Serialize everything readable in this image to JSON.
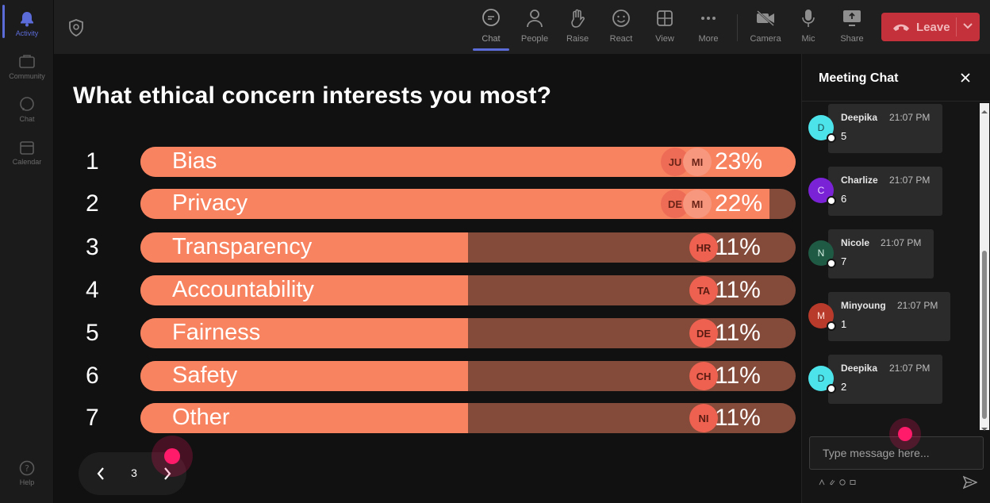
{
  "rail": {
    "items": [
      {
        "label": "Activity",
        "icon": "bell-icon"
      },
      {
        "label": "Community",
        "icon": "community-icon"
      },
      {
        "label": "Chat",
        "icon": "chat-icon"
      },
      {
        "label": "Calendar",
        "icon": "calendar-icon"
      }
    ],
    "help": {
      "label": "Help",
      "icon": "help-icon"
    }
  },
  "toolbar": {
    "buttons": [
      {
        "label": "Chat",
        "icon": "chat-bubble-icon"
      },
      {
        "label": "People",
        "icon": "people-icon"
      },
      {
        "label": "Raise",
        "icon": "raise-hand-icon"
      },
      {
        "label": "React",
        "icon": "smiley-icon"
      },
      {
        "label": "View",
        "icon": "grid-view-icon"
      },
      {
        "label": "More",
        "icon": "more-dots-icon"
      },
      {
        "label": "Camera",
        "icon": "camera-off-icon"
      },
      {
        "label": "Mic",
        "icon": "mic-icon"
      },
      {
        "label": "Share",
        "icon": "share-screen-icon"
      }
    ],
    "leave_label": "Leave",
    "leave_color": "#c4313a"
  },
  "poll": {
    "question": "What ethical concern interests you most?",
    "bar_color": "#f78360",
    "track_color": "#844b3a",
    "options": [
      {
        "num": "1",
        "label": "Bias",
        "percent": "23%",
        "fill_fraction": 1.0,
        "avatars": [
          "JU",
          "MI"
        ]
      },
      {
        "num": "2",
        "label": "Privacy",
        "percent": "22%",
        "fill_fraction": 0.96,
        "avatars": [
          "DE",
          "MI"
        ]
      },
      {
        "num": "3",
        "label": "Transparency",
        "percent": "11%",
        "fill_fraction": 0.5,
        "avatars": [
          "HR"
        ]
      },
      {
        "num": "4",
        "label": "Accountability",
        "percent": "11%",
        "fill_fraction": 0.5,
        "avatars": [
          "TA"
        ]
      },
      {
        "num": "5",
        "label": "Fairness",
        "percent": "11%",
        "fill_fraction": 0.5,
        "avatars": [
          "DE"
        ]
      },
      {
        "num": "6",
        "label": "Safety",
        "percent": "11%",
        "fill_fraction": 0.5,
        "avatars": [
          "CH"
        ]
      },
      {
        "num": "7",
        "label": "Other",
        "percent": "11%",
        "fill_fraction": 0.5,
        "avatars": [
          "NI"
        ]
      }
    ],
    "page": "3"
  },
  "chat": {
    "title": "Meeting Chat",
    "messages": [
      {
        "initial": "D",
        "name": "Deepika",
        "time": "21:07 PM",
        "text": "5",
        "avatar_color": "#4de3ea",
        "initial_color": "#1a4a4e"
      },
      {
        "initial": "C",
        "name": "Charlize",
        "time": "21:07 PM",
        "text": "6",
        "avatar_color": "#7a22d6",
        "initial_color": "#e8d6ff"
      },
      {
        "initial": "N",
        "name": "Nicole",
        "time": "21:07 PM",
        "text": "7",
        "avatar_color": "#1f5a44",
        "initial_color": "#d4efe2"
      },
      {
        "initial": "M",
        "name": "Minyoung",
        "time": "21:07 PM",
        "text": "1",
        "avatar_color": "#b83a2a",
        "initial_color": "#ffe0d8"
      },
      {
        "initial": "D",
        "name": "Deepika",
        "time": "21:07 PM",
        "text": "2",
        "avatar_color": "#4de3ea",
        "initial_color": "#1a4a4e"
      }
    ],
    "composer_placeholder": "Type message here..."
  }
}
